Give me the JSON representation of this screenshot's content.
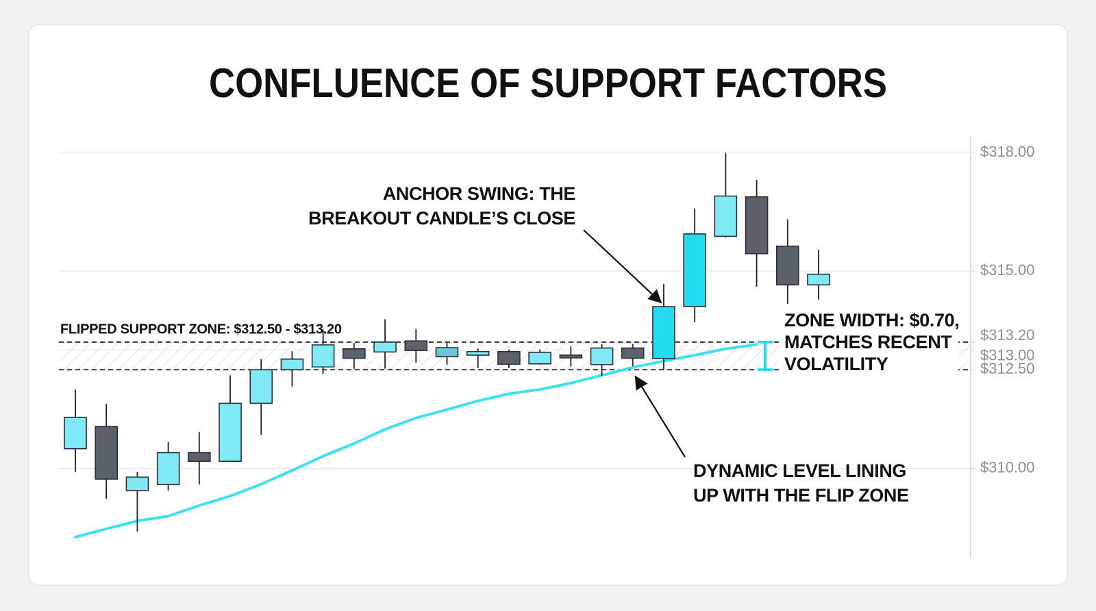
{
  "chart_data": {
    "type": "candlestick",
    "title": "CONFLUENCE OF SUPPORT FACTORS",
    "ylim": [
      308,
      318.4
    ],
    "yticks": [
      {
        "value": 318,
        "label": "$318.00"
      },
      {
        "value": 315,
        "label": "$315.00"
      },
      {
        "value": 313.2,
        "label": "$313.20"
      },
      {
        "value": 313,
        "label": "$313.00"
      },
      {
        "value": 312.5,
        "label": "$312.50"
      },
      {
        "value": 310,
        "label": "$310.00"
      }
    ],
    "grid": true,
    "open": [
      310.5,
      311.06,
      309.44,
      309.59,
      310.4,
      310.18,
      311.65,
      312.5,
      312.57,
      313.03,
      312.95,
      313.23,
      312.83,
      312.87,
      312.96,
      312.65,
      312.87,
      312.63,
      313.05,
      312.78,
      314.1,
      315.88,
      316.88,
      315.63,
      314.65
    ],
    "high": [
      312.0,
      311.64,
      309.91,
      310.67,
      310.92,
      312.36,
      312.77,
      312.97,
      313.52,
      313.18,
      313.78,
      313.53,
      313.19,
      313.04,
      313.01,
      313.01,
      313.09,
      313.15,
      313.15,
      314.67,
      316.58,
      318.0,
      317.31,
      316.31,
      315.54
    ],
    "low": [
      309.91,
      309.23,
      308.4,
      309.44,
      309.59,
      310.18,
      310.85,
      312.07,
      312.39,
      312.52,
      312.53,
      312.68,
      312.63,
      312.54,
      312.54,
      312.63,
      312.58,
      312.34,
      312.59,
      312.51,
      313.7,
      315.85,
      314.6,
      314.17,
      314.28
    ],
    "close": [
      311.29,
      309.73,
      309.78,
      310.4,
      310.18,
      311.65,
      312.5,
      312.77,
      313.13,
      312.79,
      313.2,
      312.99,
      313.06,
      312.96,
      312.64,
      312.94,
      312.8,
      313.05,
      312.79,
      314.1,
      315.94,
      316.9,
      315.44,
      314.65,
      314.92
    ],
    "colors": [
      "#7fe9f6",
      "#5c626c",
      "#7fe9f6",
      "#7fe9f6",
      "#5c626c",
      "#7fe9f6",
      "#7fe9f6",
      "#7fe9f6",
      "#7fe9f6",
      "#5c626c",
      "#7fe9f6",
      "#5c626c",
      "#6cc6da",
      "#7fe9f6",
      "#5c626c",
      "#7fe9f6",
      "#5c626c",
      "#7fe9f6",
      "#5c626c",
      "#22dcef",
      "#22dcef",
      "#7fe9f6",
      "#5c626c",
      "#5c626c",
      "#7fe9f6"
    ],
    "moving_average": {
      "color": "#3fe0f0",
      "values": [
        308.26,
        308.47,
        308.67,
        308.79,
        309.06,
        309.3,
        309.6,
        309.95,
        310.31,
        310.63,
        310.99,
        311.28,
        311.49,
        311.71,
        311.89,
        312.0,
        312.16,
        312.36,
        312.56,
        312.72,
        312.87,
        313.03,
        313.14,
        null,
        null
      ]
    },
    "zone": {
      "label": "FLIPPED SUPPORT ZONE: $312.50 - $313.20",
      "low": 312.5,
      "high": 313.2,
      "color": "#22dcef"
    },
    "annotations": [
      {
        "lines": [
          "ANCHOR SWING: THE",
          "BREAKOUT CANDLE’S CLOSE"
        ]
      },
      {
        "lines": [
          "ZONE WIDTH: $0.70,",
          "MATCHES RECENT",
          "VOLATILITY"
        ]
      },
      {
        "lines": [
          "DYNAMIC LEVEL LINING",
          "UP WITH THE FLIP ZONE"
        ]
      }
    ]
  }
}
